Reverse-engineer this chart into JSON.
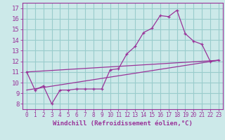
{
  "title": "",
  "xlabel": "Windchill (Refroidissement éolien,°C)",
  "ylabel": "",
  "background_color": "#cce9e9",
  "line_color": "#993399",
  "grid_color": "#99cccc",
  "xlim": [
    -0.5,
    23.5
  ],
  "ylim": [
    7.5,
    17.5
  ],
  "xticks": [
    0,
    1,
    2,
    3,
    4,
    5,
    6,
    7,
    8,
    9,
    10,
    11,
    12,
    13,
    14,
    15,
    16,
    17,
    18,
    19,
    20,
    21,
    22,
    23
  ],
  "yticks": [
    8,
    9,
    10,
    11,
    12,
    13,
    14,
    15,
    16,
    17
  ],
  "line1_x": [
    0,
    1,
    2,
    3,
    4,
    5,
    6,
    7,
    8,
    9,
    10,
    11,
    12,
    13,
    14,
    15,
    16,
    17,
    18,
    19,
    20,
    21,
    22,
    23
  ],
  "line1_y": [
    11.0,
    9.3,
    9.7,
    8.0,
    9.3,
    9.3,
    9.4,
    9.4,
    9.4,
    9.4,
    11.2,
    11.3,
    12.7,
    13.4,
    14.7,
    15.1,
    16.3,
    16.2,
    16.8,
    14.6,
    13.9,
    13.6,
    12.0,
    12.1
  ],
  "line2_x": [
    0,
    23
  ],
  "line2_y": [
    11.0,
    12.1
  ],
  "line3_x": [
    0,
    23
  ],
  "line3_y": [
    9.3,
    12.1
  ],
  "font_color": "#993399",
  "font_size_ticks_x": 5.5,
  "font_size_ticks_y": 6.5,
  "font_size_label": 6.5
}
